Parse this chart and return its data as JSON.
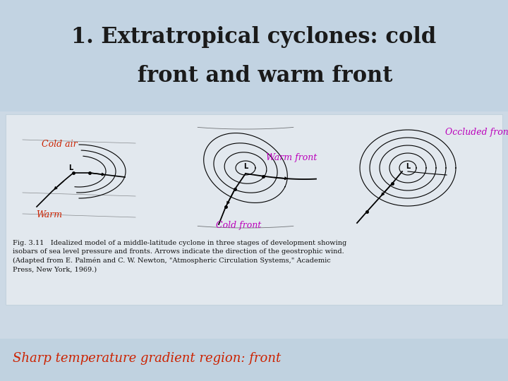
{
  "title_line1": "1. Extratropical cyclones: cold",
  "title_line2": "   front and warm front",
  "title_color": "#1a1a1a",
  "title_fontsize": 22,
  "bg_color": "#c8d8e8",
  "content_bg": "#d8e5ef",
  "diagram_box_color": "#e8eef4",
  "label_cold_air": "Cold air",
  "label_warm": "Warm",
  "label_warm_front": "Warm front",
  "label_cold_front": "Cold front",
  "label_occluded": "Occluded front",
  "label_sharp": "Sharp temperature gradient region: front",
  "label_color_red": "#cc2200",
  "label_color_magenta": "#bb00bb",
  "caption_text": "Fig. 3.11   Idealized model of a middle-latitude cyclone in three stages of development showing\nisobars of sea level pressure and fronts. Arrows indicate the direction of the geostrophic wind.\n(Adapted from E. Palmén and C. W. Newton, \"Atmospheric Circulation Systems,\" Academic\nPress, New York, 1969.)",
  "caption_fontsize": 7
}
